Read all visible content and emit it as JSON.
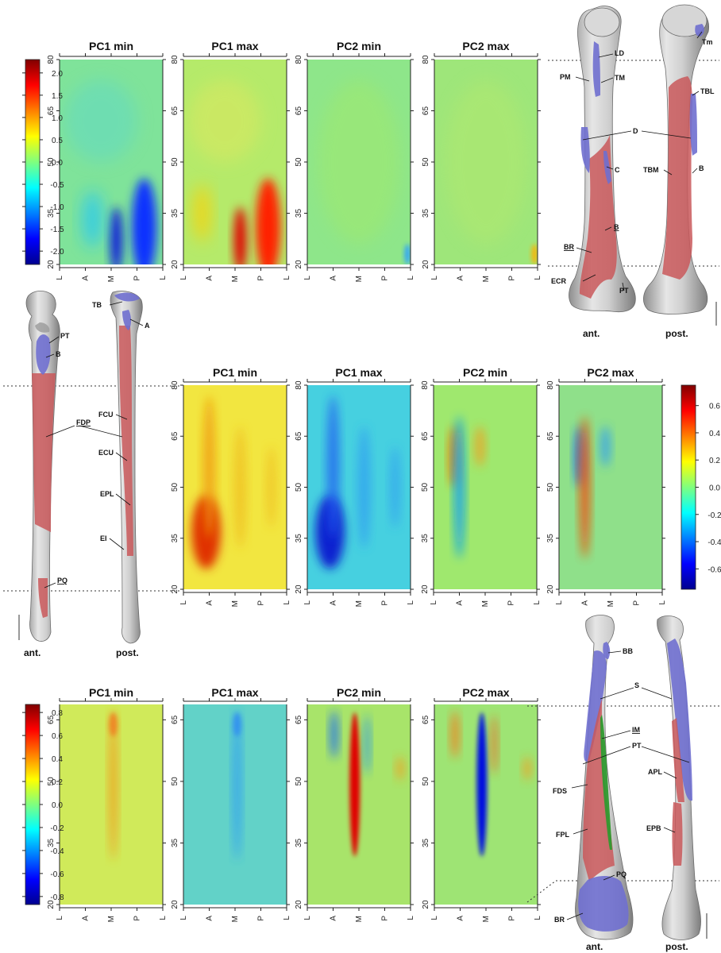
{
  "hm_x_ticks": [
    "L",
    "A",
    "M",
    "P",
    "L"
  ],
  "rows": [
    {
      "id": "humerus",
      "y_ticks": [
        "20",
        "35",
        "50",
        "65",
        "80"
      ],
      "panel_titles": [
        "PC1 min",
        "PC1 max",
        "PC2 min",
        "PC2 max"
      ],
      "colorbar_ticks": [
        "-2.0",
        "-1.5",
        "-1.0",
        "-0.5",
        "0.0",
        "0.5",
        "1.0",
        "1.5",
        "2.0"
      ],
      "colorbar_range": [
        -2.3,
        2.3
      ]
    },
    {
      "id": "ulna",
      "y_ticks": [
        "20",
        "35",
        "50",
        "65",
        "80"
      ],
      "panel_titles": [
        "PC1 min",
        "PC1 max",
        "PC2 min",
        "PC2 max"
      ],
      "colorbar_ticks": [
        "-0.6",
        "-0.4",
        "-0.2",
        "0.0",
        "0.2",
        "0.4",
        "0.6"
      ],
      "colorbar_range": [
        -0.75,
        0.75
      ]
    },
    {
      "id": "radius",
      "y_ticks": [
        "20",
        "35",
        "50",
        "65"
      ],
      "panel_titles": [
        "PC1 min",
        "PC1 max",
        "PC2 min",
        "PC2 max"
      ],
      "colorbar_ticks": [
        "-0.8",
        "-0.6",
        "-0.4",
        "-0.2",
        "0.0",
        "0.2",
        "0.4",
        "0.6",
        "0.8"
      ],
      "colorbar_range": [
        -0.87,
        0.87
      ]
    }
  ],
  "humerus_labels": {
    "LD": "LD",
    "PM": "PM",
    "TM": "TM",
    "D": "D",
    "C": "C",
    "B": "B",
    "BR": "BR",
    "ECR": "ECR",
    "PT": "PT",
    "Tm": "Tm",
    "TBL": "TBL",
    "TBM": "TBM",
    "B2": "B",
    "ant": "ant.",
    "post": "post."
  },
  "ulna_labels": {
    "PT": "PT",
    "B": "B",
    "FDP": "FDP",
    "PQ": "PQ",
    "TB": "TB",
    "A": "A",
    "FCU": "FCU",
    "ECU": "ECU",
    "EPL": "EPL",
    "EI": "EI",
    "ant": "ant.",
    "post": "post."
  },
  "radius_labels": {
    "BB": "BB",
    "S": "S",
    "IM": "IM",
    "PT": "PT",
    "FDS": "FDS",
    "APL": "APL",
    "FPL": "FPL",
    "EPB": "EPB",
    "PQ": "PQ",
    "BR": "BR",
    "ant": "ant.",
    "post": "post."
  },
  "colors": {
    "muscle_red": "#c9585a",
    "muscle_blue": "#6f6fcf",
    "muscle_green": "#2f9a2f",
    "bone_gray": "#bdbdbd"
  }
}
